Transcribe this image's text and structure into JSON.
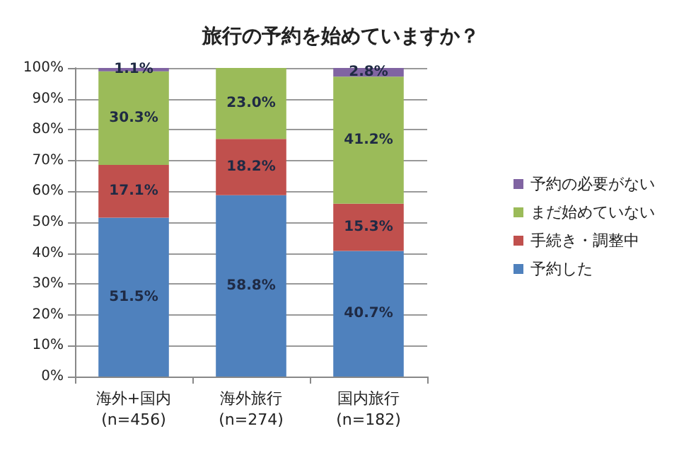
{
  "chart_data": {
    "type": "bar",
    "title": "旅行の予約を始めていますか？",
    "stacked": true,
    "categories": [
      "海外+国内\n(n=456)",
      "海外旅行\n(n=274)",
      "国内旅行\n(n=182)"
    ],
    "series": [
      {
        "name": "予約した",
        "color": "#4f81bd",
        "values": [
          51.5,
          58.8,
          40.7
        ],
        "value_labels": [
          "51.5%",
          "58.8%",
          "40.7%"
        ]
      },
      {
        "name": "手続き・調整中",
        "color": "#c0504d",
        "values": [
          17.1,
          18.2,
          15.3
        ],
        "value_labels": [
          "17.1%",
          "18.2%",
          "15.3%"
        ]
      },
      {
        "name": "まだ始めていない",
        "color": "#9bbb59",
        "values": [
          30.3,
          23.0,
          41.2
        ],
        "value_labels": [
          "30.3%",
          "23.0%",
          "41.2%"
        ]
      },
      {
        "name": "予約の必要がない",
        "color": "#8064a2",
        "values": [
          1.1,
          null,
          2.8
        ],
        "value_labels": [
          "1.1%",
          null,
          "2.8%"
        ]
      }
    ],
    "ylim": [
      0,
      100
    ],
    "yticks": [
      {
        "value": 0,
        "label": "0%"
      },
      {
        "value": 10,
        "label": "10%"
      },
      {
        "value": 20,
        "label": "20%"
      },
      {
        "value": 30,
        "label": "30%"
      },
      {
        "value": 40,
        "label": "40%"
      },
      {
        "value": 50,
        "label": "50%"
      },
      {
        "value": 60,
        "label": "60%"
      },
      {
        "value": 70,
        "label": "70%"
      },
      {
        "value": 80,
        "label": "80%"
      },
      {
        "value": 90,
        "label": "90%"
      },
      {
        "value": 100,
        "label": "100%"
      }
    ],
    "grid": "y",
    "legend": "right"
  }
}
